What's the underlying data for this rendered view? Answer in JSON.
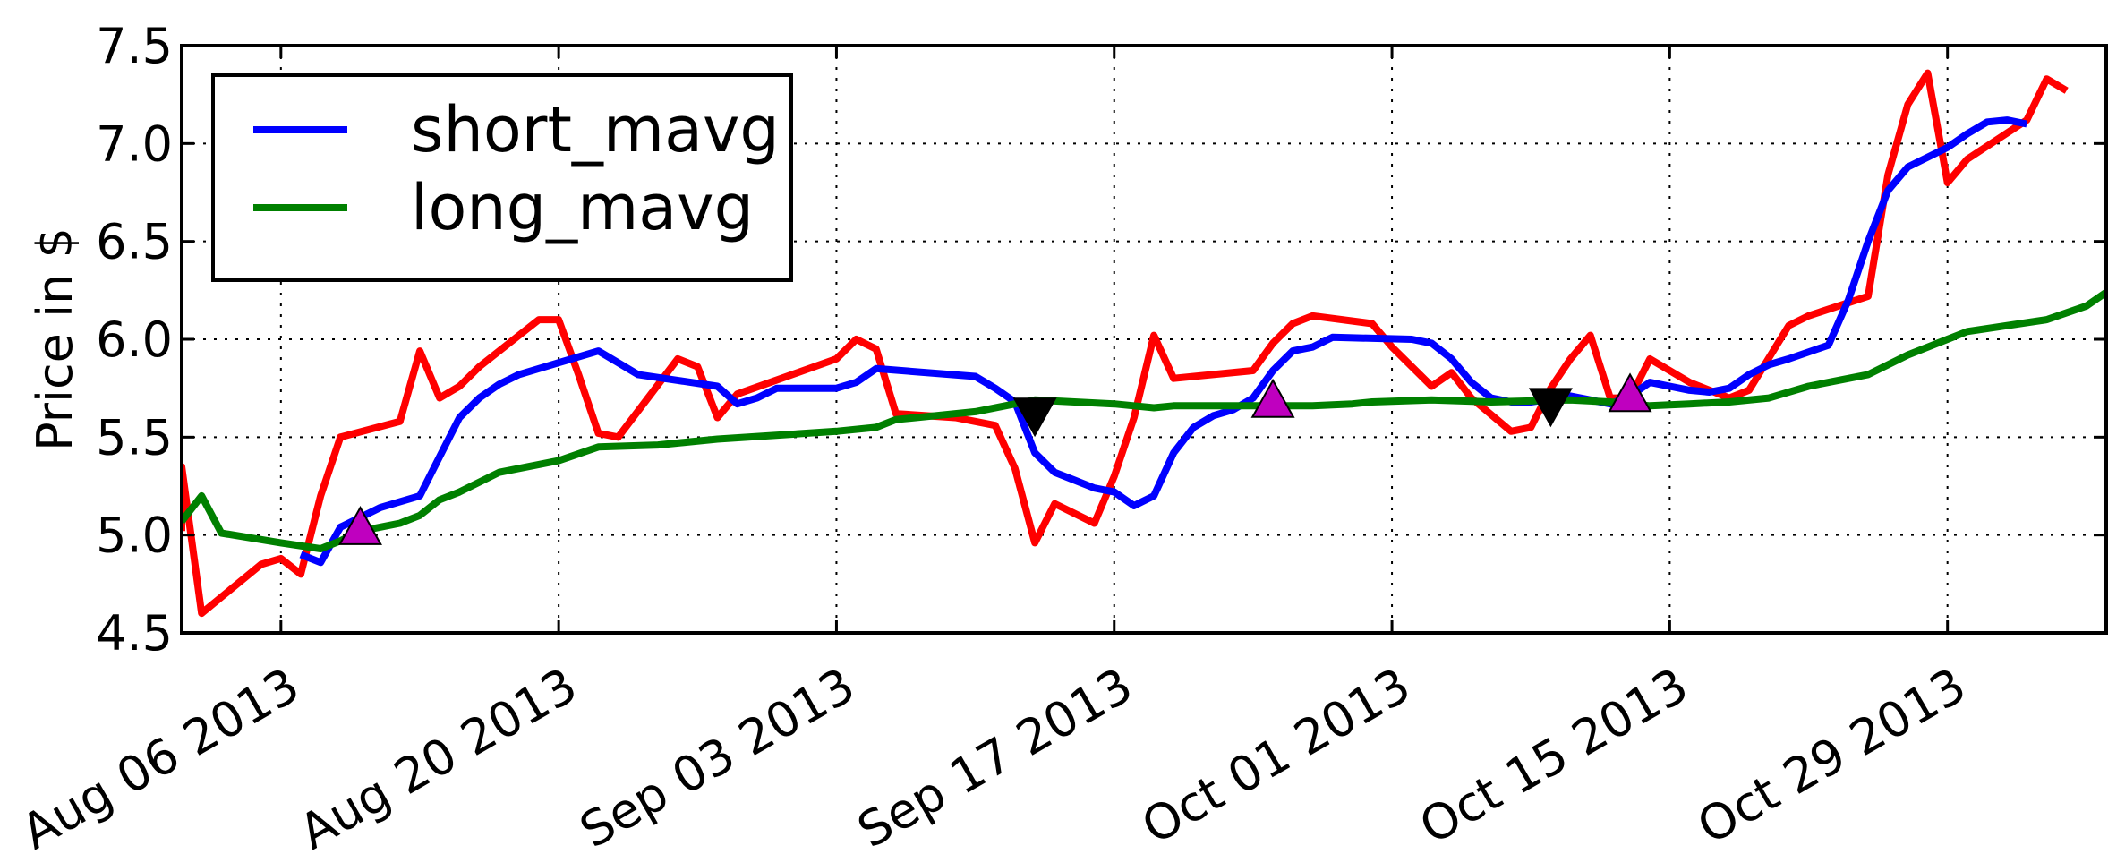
{
  "chart_data": {
    "type": "line",
    "title": "",
    "xlabel": "",
    "ylabel": "Price in $",
    "ylim": [
      4.5,
      7.5
    ],
    "xlim": [
      "2013-08-01",
      "2013-11-06"
    ],
    "grid": true,
    "legend": {
      "placement": "top-left"
    },
    "y_ticks": [
      "4.5",
      "5.0",
      "5.5",
      "6.0",
      "6.5",
      "7.0",
      "7.5"
    ],
    "x_ticks": [
      {
        "date": "2013-08-06",
        "label": "Aug 06 2013"
      },
      {
        "date": "2013-08-20",
        "label": "Aug 20 2013"
      },
      {
        "date": "2013-09-03",
        "label": "Sep 03 2013"
      },
      {
        "date": "2013-09-17",
        "label": "Sep 17 2013"
      },
      {
        "date": "2013-10-01",
        "label": "Oct 01 2013"
      },
      {
        "date": "2013-10-15",
        "label": "Oct 15 2013"
      },
      {
        "date": "2013-10-29",
        "label": "Oct 29 2013"
      }
    ],
    "series": [
      {
        "key": "price",
        "color": "#ff0000",
        "in_legend": false,
        "points": [
          [
            "2013-08-01",
            5.02
          ],
          [
            "2013-08-01",
            5.35
          ],
          [
            "2013-08-02",
            4.6
          ],
          [
            "2013-08-05",
            4.85
          ],
          [
            "2013-08-06",
            4.88
          ],
          [
            "2013-08-07",
            4.8
          ],
          [
            "2013-08-08",
            5.2
          ],
          [
            "2013-08-09",
            5.5
          ],
          [
            "2013-08-12",
            5.58
          ],
          [
            "2013-08-13",
            5.94
          ],
          [
            "2013-08-14",
            5.7
          ],
          [
            "2013-08-15",
            5.76
          ],
          [
            "2013-08-16",
            5.86
          ],
          [
            "2013-08-19",
            6.1
          ],
          [
            "2013-08-20",
            6.1
          ],
          [
            "2013-08-21",
            5.82
          ],
          [
            "2013-08-22",
            5.52
          ],
          [
            "2013-08-23",
            5.5
          ],
          [
            "2013-08-26",
            5.9
          ],
          [
            "2013-08-27",
            5.86
          ],
          [
            "2013-08-28",
            5.6
          ],
          [
            "2013-08-29",
            5.72
          ],
          [
            "2013-09-03",
            5.9
          ],
          [
            "2013-09-04",
            6.0
          ],
          [
            "2013-09-05",
            5.95
          ],
          [
            "2013-09-06",
            5.62
          ],
          [
            "2013-09-09",
            5.6
          ],
          [
            "2013-09-10",
            5.58
          ],
          [
            "2013-09-11",
            5.56
          ],
          [
            "2013-09-12",
            5.34
          ],
          [
            "2013-09-13",
            4.96
          ],
          [
            "2013-09-14",
            5.16
          ],
          [
            "2013-09-16",
            5.06
          ],
          [
            "2013-09-17",
            5.3
          ],
          [
            "2013-09-18",
            5.6
          ],
          [
            "2013-09-19",
            6.02
          ],
          [
            "2013-09-20",
            5.8
          ],
          [
            "2013-09-24",
            5.84
          ],
          [
            "2013-09-25",
            5.98
          ],
          [
            "2013-09-26",
            6.08
          ],
          [
            "2013-09-27",
            6.12
          ],
          [
            "2013-09-30",
            6.08
          ],
          [
            "2013-10-01",
            5.96
          ],
          [
            "2013-10-03",
            5.76
          ],
          [
            "2013-10-04",
            5.83
          ],
          [
            "2013-10-05",
            5.7
          ],
          [
            "2013-10-07",
            5.53
          ],
          [
            "2013-10-08",
            5.55
          ],
          [
            "2013-10-09",
            5.75
          ],
          [
            "2013-10-10",
            5.9
          ],
          [
            "2013-10-11",
            6.02
          ],
          [
            "2013-10-12",
            5.7
          ],
          [
            "2013-10-13",
            5.7
          ],
          [
            "2013-10-14",
            5.9
          ],
          [
            "2013-10-16",
            5.78
          ],
          [
            "2013-10-18",
            5.7
          ],
          [
            "2013-10-19",
            5.74
          ],
          [
            "2013-10-21",
            6.07
          ],
          [
            "2013-10-22",
            6.12
          ],
          [
            "2013-10-25",
            6.22
          ],
          [
            "2013-10-26",
            6.84
          ],
          [
            "2013-10-27",
            7.2
          ],
          [
            "2013-10-28",
            7.36
          ],
          [
            "2013-10-29",
            6.8
          ],
          [
            "2013-10-30",
            6.92
          ],
          [
            "2013-11-02",
            7.12
          ],
          [
            "2013-11-03",
            7.33
          ],
          [
            "2013-11-04",
            7.27
          ]
        ]
      },
      {
        "key": "short_mavg",
        "name": "short_mavg",
        "color": "#0000ff",
        "in_legend": true,
        "points": [
          [
            "2013-08-07",
            4.9
          ],
          [
            "2013-08-08",
            4.86
          ],
          [
            "2013-08-09",
            5.04
          ],
          [
            "2013-08-11",
            5.14
          ],
          [
            "2013-08-13",
            5.2
          ],
          [
            "2013-08-14",
            5.4
          ],
          [
            "2013-08-15",
            5.6
          ],
          [
            "2013-08-16",
            5.7
          ],
          [
            "2013-08-17",
            5.77
          ],
          [
            "2013-08-18",
            5.82
          ],
          [
            "2013-08-20",
            5.88
          ],
          [
            "2013-08-22",
            5.94
          ],
          [
            "2013-08-23",
            5.88
          ],
          [
            "2013-08-24",
            5.82
          ],
          [
            "2013-08-26",
            5.79
          ],
          [
            "2013-08-28",
            5.76
          ],
          [
            "2013-08-29",
            5.67
          ],
          [
            "2013-08-30",
            5.7
          ],
          [
            "2013-08-31",
            5.75
          ],
          [
            "2013-09-03",
            5.75
          ],
          [
            "2013-09-04",
            5.78
          ],
          [
            "2013-09-05",
            5.85
          ],
          [
            "2013-09-10",
            5.81
          ],
          [
            "2013-09-11",
            5.75
          ],
          [
            "2013-09-12",
            5.68
          ],
          [
            "2013-09-13",
            5.42
          ],
          [
            "2013-09-14",
            5.32
          ],
          [
            "2013-09-15",
            5.28
          ],
          [
            "2013-09-16",
            5.24
          ],
          [
            "2013-09-17",
            5.22
          ],
          [
            "2013-09-18",
            5.15
          ],
          [
            "2013-09-19",
            5.2
          ],
          [
            "2013-09-20",
            5.42
          ],
          [
            "2013-09-21",
            5.55
          ],
          [
            "2013-09-22",
            5.61
          ],
          [
            "2013-09-23",
            5.64
          ],
          [
            "2013-09-24",
            5.7
          ],
          [
            "2013-09-25",
            5.84
          ],
          [
            "2013-09-26",
            5.94
          ],
          [
            "2013-09-27",
            5.96
          ],
          [
            "2013-09-28",
            6.01
          ],
          [
            "2013-10-02",
            6.0
          ],
          [
            "2013-10-03",
            5.98
          ],
          [
            "2013-10-04",
            5.9
          ],
          [
            "2013-10-05",
            5.78
          ],
          [
            "2013-10-06",
            5.7
          ],
          [
            "2013-10-07",
            5.68
          ],
          [
            "2013-10-08",
            5.68
          ],
          [
            "2013-10-10",
            5.71
          ],
          [
            "2013-10-12",
            5.67
          ],
          [
            "2013-10-13",
            5.71
          ],
          [
            "2013-10-14",
            5.78
          ],
          [
            "2013-10-15",
            5.76
          ],
          [
            "2013-10-16",
            5.74
          ],
          [
            "2013-10-17",
            5.73
          ],
          [
            "2013-10-18",
            5.75
          ],
          [
            "2013-10-19",
            5.82
          ],
          [
            "2013-10-20",
            5.87
          ],
          [
            "2013-10-21",
            5.9
          ],
          [
            "2013-10-23",
            5.97
          ],
          [
            "2013-10-24",
            6.2
          ],
          [
            "2013-10-25",
            6.5
          ],
          [
            "2013-10-26",
            6.76
          ],
          [
            "2013-10-27",
            6.88
          ],
          [
            "2013-10-29",
            6.98
          ],
          [
            "2013-10-30",
            7.05
          ],
          [
            "2013-10-31",
            7.11
          ],
          [
            "2013-11-01",
            7.12
          ],
          [
            "2013-11-02",
            7.1
          ]
        ]
      },
      {
        "key": "long_mavg",
        "name": "long_mavg",
        "color": "#008000",
        "in_legend": true,
        "points": [
          [
            "2013-08-01",
            5.07
          ],
          [
            "2013-08-02",
            5.2
          ],
          [
            "2013-08-03",
            5.01
          ],
          [
            "2013-08-06",
            4.96
          ],
          [
            "2013-08-08",
            4.93
          ],
          [
            "2013-08-09",
            4.97
          ],
          [
            "2013-08-10",
            5.02
          ],
          [
            "2013-08-12",
            5.06
          ],
          [
            "2013-08-13",
            5.1
          ],
          [
            "2013-08-14",
            5.18
          ],
          [
            "2013-08-15",
            5.22
          ],
          [
            "2013-08-17",
            5.32
          ],
          [
            "2013-08-20",
            5.38
          ],
          [
            "2013-08-22",
            5.45
          ],
          [
            "2013-08-25",
            5.46
          ],
          [
            "2013-08-28",
            5.49
          ],
          [
            "2013-09-03",
            5.53
          ],
          [
            "2013-09-05",
            5.55
          ],
          [
            "2013-09-06",
            5.59
          ],
          [
            "2013-09-08",
            5.61
          ],
          [
            "2013-09-10",
            5.63
          ],
          [
            "2013-09-12",
            5.67
          ],
          [
            "2013-09-13",
            5.69
          ],
          [
            "2013-09-15",
            5.68
          ],
          [
            "2013-09-17",
            5.67
          ],
          [
            "2013-09-19",
            5.65
          ],
          [
            "2013-09-20",
            5.66
          ],
          [
            "2013-09-23",
            5.66
          ],
          [
            "2013-09-27",
            5.66
          ],
          [
            "2013-09-29",
            5.67
          ],
          [
            "2013-09-30",
            5.68
          ],
          [
            "2013-10-03",
            5.69
          ],
          [
            "2013-10-06",
            5.68
          ],
          [
            "2013-10-10",
            5.69
          ],
          [
            "2013-10-12",
            5.68
          ],
          [
            "2013-10-14",
            5.66
          ],
          [
            "2013-10-16",
            5.67
          ],
          [
            "2013-10-18",
            5.68
          ],
          [
            "2013-10-20",
            5.7
          ],
          [
            "2013-10-22",
            5.76
          ],
          [
            "2013-10-25",
            5.82
          ],
          [
            "2013-10-27",
            5.92
          ],
          [
            "2013-10-29",
            6.0
          ],
          [
            "2013-10-30",
            6.04
          ],
          [
            "2013-11-03",
            6.1
          ],
          [
            "2013-11-05",
            6.17
          ],
          [
            "2013-11-06",
            6.24
          ]
        ]
      }
    ],
    "markers": [
      {
        "type": "buy",
        "date": "2013-08-10",
        "value": 5.03,
        "shape": "triangle-up",
        "color": "#bf00bf"
      },
      {
        "type": "sell",
        "date": "2013-09-13",
        "value": 5.62,
        "shape": "triangle-down",
        "color": "#000000"
      },
      {
        "type": "buy",
        "date": "2013-09-25",
        "value": 5.68,
        "shape": "triangle-up",
        "color": "#bf00bf"
      },
      {
        "type": "sell",
        "date": "2013-10-09",
        "value": 5.67,
        "shape": "triangle-down",
        "color": "#000000"
      },
      {
        "type": "buy",
        "date": "2013-10-13",
        "value": 5.71,
        "shape": "triangle-up",
        "color": "#bf00bf"
      }
    ]
  }
}
